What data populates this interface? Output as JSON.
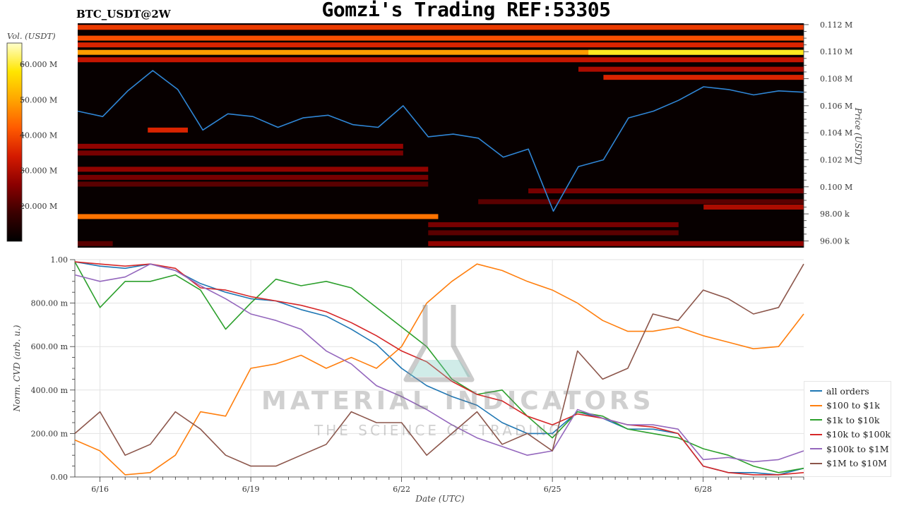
{
  "header": {
    "title": "Gomzi's Trading REF:53305",
    "pair": "BTC_USDT@2W"
  },
  "watermark": {
    "main": "MATERIAL INDICATORS",
    "sub": "THE SCIENCE OF TRADING"
  },
  "chart_data": [
    {
      "type": "heatmap",
      "name": "order-book-heatmap",
      "colorbar_label": "Vol. (USDT)",
      "colorbar_ticks": [
        "60.000 M",
        "50.000 M",
        "40.000 M",
        "30.000 M",
        "20.000 M"
      ],
      "colorbar_tick_values": [
        60,
        50,
        40,
        30,
        20
      ],
      "colorbar_range": [
        10,
        66
      ],
      "ylabel": "Price (USDT)",
      "ytick_labels": [
        "0.112 M",
        "0.110 M",
        "0.108 M",
        "0.106 M",
        "0.104 M",
        "0.102 M",
        "0.100 M",
        "98.00 k",
        "96.00 k"
      ],
      "yticks": [
        112000,
        110000,
        108000,
        106000,
        104000,
        102000,
        100000,
        98000,
        96000
      ],
      "ylim": [
        95500,
        112100
      ],
      "colorscale": [
        "#000000",
        "#3a0000",
        "#8b0000",
        "#d41a00",
        "#ff5a00",
        "#ffa500",
        "#ffe600",
        "#ffffcc"
      ],
      "price_line_color": "#2f86d6",
      "price_series": {
        "x": [
          0,
          0.5,
          1,
          1.5,
          2,
          2.5,
          3,
          3.5,
          4,
          4.5,
          5,
          5.5,
          6,
          6.5,
          7,
          7.5,
          8,
          8.5,
          9,
          9.5,
          10,
          10.5,
          11,
          11.5,
          12,
          12.5,
          13,
          13.5,
          14,
          14.5
        ],
        "values": [
          105600,
          105200,
          107100,
          108600,
          107200,
          104200,
          105400,
          105200,
          104400,
          105100,
          105300,
          104600,
          104400,
          106000,
          103700,
          103900,
          103600,
          102200,
          102800,
          98200,
          101500,
          102000,
          105100,
          105600,
          106400,
          107400,
          107200,
          106800,
          107100,
          107000
        ]
      },
      "bands": [
        {
          "price": 111800,
          "intensity": 0.5
        },
        {
          "price": 111000,
          "intensity": 0.55
        },
        {
          "price": 110500,
          "intensity": 0.45
        },
        {
          "price": 109950,
          "intensity": 0.7,
          "hot_from": 10.2,
          "hot_intensity": 0.88
        },
        {
          "price": 109400,
          "intensity": 0.4
        },
        {
          "price": 108700,
          "intensity": 0.35,
          "from": 10
        },
        {
          "price": 108100,
          "intensity": 0.45,
          "from": 10.5
        },
        {
          "price": 104200,
          "intensity": 0.45,
          "from": 1.4,
          "to": 2.2
        },
        {
          "price": 103000,
          "intensity": 0.3,
          "from": 0,
          "to": 6.5
        },
        {
          "price": 102500,
          "intensity": 0.25,
          "from": 0,
          "to": 6.5
        },
        {
          "price": 101300,
          "intensity": 0.3,
          "from": 0,
          "to": 7
        },
        {
          "price": 100700,
          "intensity": 0.25,
          "from": 0,
          "to": 7
        },
        {
          "price": 100200,
          "intensity": 0.2,
          "from": 0,
          "to": 7
        },
        {
          "price": 99700,
          "intensity": 0.25,
          "from": 9,
          "to": 14.5
        },
        {
          "price": 98900,
          "intensity": 0.2,
          "from": 8,
          "to": 14.5
        },
        {
          "price": 98500,
          "intensity": 0.35,
          "from": 12.5,
          "to": 14.5
        },
        {
          "price": 97800,
          "intensity": 0.62,
          "from": 0,
          "to": 7.2
        },
        {
          "price": 97200,
          "intensity": 0.25,
          "from": 7,
          "to": 12
        },
        {
          "price": 96600,
          "intensity": 0.2,
          "from": 7,
          "to": 12
        },
        {
          "price": 95800,
          "intensity": 0.3,
          "from": 7,
          "to": 14.5
        },
        {
          "price": 95800,
          "intensity": 0.2,
          "from": 0,
          "to": 0.7
        }
      ]
    },
    {
      "type": "line",
      "name": "normalized-cvd",
      "xlabel": "Date (UTC)",
      "ylabel": "Norm. CVD (arb. u.)",
      "xtick_labels": [
        "6/16",
        "6/19",
        "6/22",
        "6/25",
        "6/28"
      ],
      "xticks": [
        0.5,
        3.5,
        6.5,
        9.5,
        12.5
      ],
      "xlim": [
        0,
        14.5
      ],
      "ytick_labels": [
        "1.00",
        "800.00 m",
        "600.00 m",
        "400.00 m",
        "200.00 m",
        "0.00"
      ],
      "yticks": [
        1.0,
        0.8,
        0.6,
        0.4,
        0.2,
        0.0
      ],
      "ylim": [
        0,
        1
      ],
      "grid": true,
      "legend": "right",
      "x": [
        0,
        0.5,
        1,
        1.5,
        2,
        2.5,
        3,
        3.5,
        4,
        4.5,
        5,
        5.5,
        6,
        6.5,
        7,
        7.5,
        8,
        8.5,
        9,
        9.5,
        10,
        10.5,
        11,
        11.5,
        12,
        12.5,
        13,
        13.5,
        14,
        14.5
      ],
      "series": [
        {
          "name": "all orders",
          "color": "#1f77b4",
          "values": [
            0.99,
            0.97,
            0.96,
            0.98,
            0.95,
            0.89,
            0.85,
            0.82,
            0.81,
            0.77,
            0.74,
            0.68,
            0.61,
            0.5,
            0.42,
            0.37,
            0.33,
            0.25,
            0.2,
            0.2,
            0.3,
            0.27,
            0.22,
            0.22,
            0.2,
            0.05,
            0.02,
            0.02,
            0.01,
            0.04
          ]
        },
        {
          "name": "$100 to $1k",
          "color": "#ff7f0e",
          "values": [
            0.17,
            0.12,
            0.01,
            0.02,
            0.1,
            0.3,
            0.28,
            0.5,
            0.52,
            0.56,
            0.5,
            0.55,
            0.5,
            0.6,
            0.8,
            0.9,
            0.98,
            0.95,
            0.9,
            0.86,
            0.8,
            0.72,
            0.67,
            0.67,
            0.69,
            0.65,
            0.62,
            0.59,
            0.6,
            0.75
          ]
        },
        {
          "name": "$1k to $10k",
          "color": "#2ca02c",
          "values": [
            0.99,
            0.78,
            0.9,
            0.9,
            0.93,
            0.86,
            0.68,
            0.8,
            0.91,
            0.88,
            0.9,
            0.87,
            0.78,
            0.69,
            0.6,
            0.45,
            0.38,
            0.4,
            0.28,
            0.18,
            0.3,
            0.28,
            0.22,
            0.2,
            0.18,
            0.13,
            0.1,
            0.05,
            0.02,
            0.04
          ]
        },
        {
          "name": "$10k to $100k",
          "color": "#d62728",
          "values": [
            0.99,
            0.98,
            0.97,
            0.98,
            0.96,
            0.87,
            0.86,
            0.83,
            0.81,
            0.79,
            0.76,
            0.71,
            0.65,
            0.58,
            0.53,
            0.44,
            0.38,
            0.35,
            0.28,
            0.24,
            0.29,
            0.27,
            0.24,
            0.23,
            0.2,
            0.05,
            0.02,
            0.01,
            0.01,
            0.02
          ]
        },
        {
          "name": "$100k to $1M",
          "color": "#9467bd",
          "values": [
            0.93,
            0.9,
            0.92,
            0.98,
            0.95,
            0.88,
            0.82,
            0.75,
            0.72,
            0.68,
            0.58,
            0.52,
            0.42,
            0.37,
            0.31,
            0.24,
            0.18,
            0.14,
            0.1,
            0.12,
            0.31,
            0.27,
            0.24,
            0.24,
            0.22,
            0.08,
            0.09,
            0.07,
            0.08,
            0.12
          ]
        },
        {
          "name": "$1M to $10M",
          "color": "#8c564b",
          "values": [
            0.2,
            0.3,
            0.1,
            0.15,
            0.3,
            0.22,
            0.1,
            0.05,
            0.05,
            0.1,
            0.15,
            0.3,
            0.25,
            0.25,
            0.1,
            0.2,
            0.3,
            0.15,
            0.2,
            0.12,
            0.58,
            0.45,
            0.5,
            0.75,
            0.72,
            0.86,
            0.82,
            0.75,
            0.78,
            0.98
          ]
        }
      ]
    }
  ]
}
